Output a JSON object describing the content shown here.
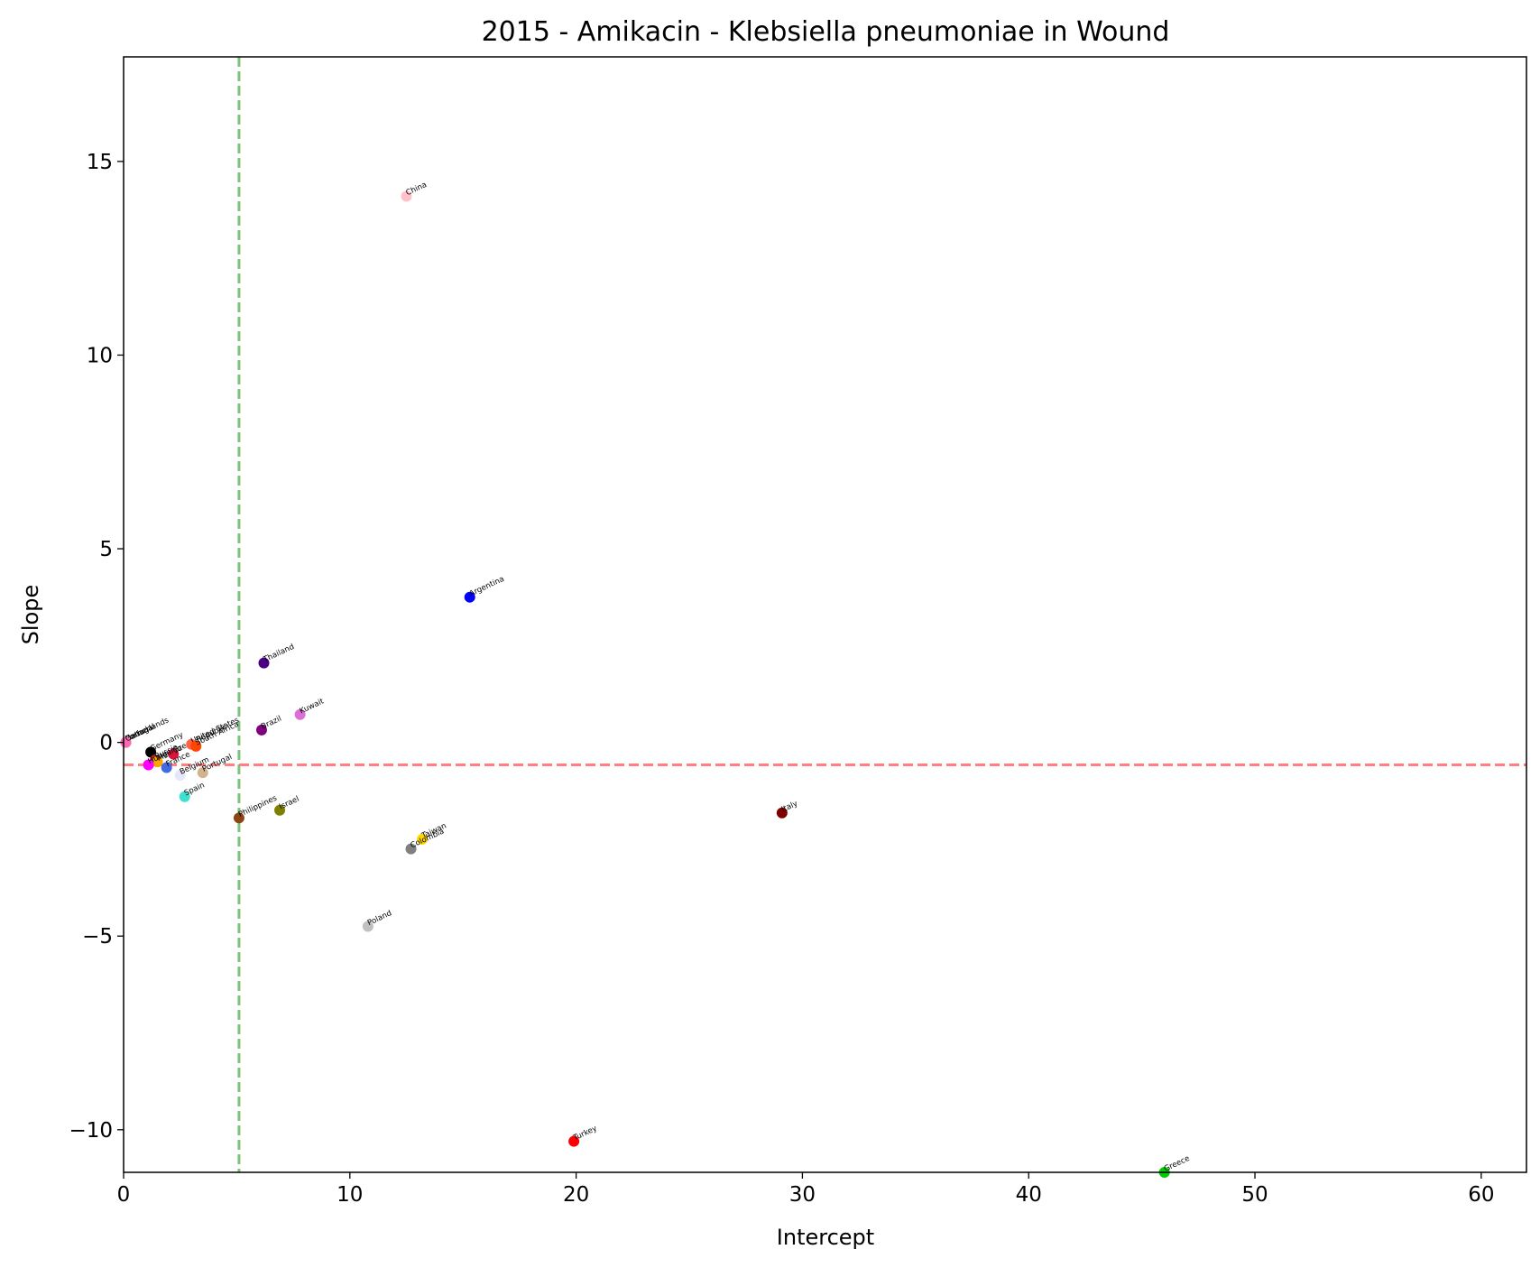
{
  "chart_data": {
    "type": "scatter",
    "title": "2015 - Amikacin - Klebsiella pneumoniae in Wound",
    "xlabel": "Intercept",
    "ylabel": "Slope",
    "xlim": [
      0,
      62
    ],
    "ylim": [
      -11.1,
      17.7
    ],
    "xticks": [
      0,
      10,
      20,
      30,
      40,
      50,
      60
    ],
    "yticks": [
      -10,
      -5,
      0,
      5,
      10,
      15
    ],
    "xtick_labels": [
      "0",
      "10",
      "20",
      "30",
      "40",
      "50",
      "60"
    ],
    "ytick_labels": [
      "−10",
      "−5",
      "0",
      "5",
      "10",
      "15"
    ],
    "grid": false,
    "reference_lines": [
      {
        "orientation": "vertical",
        "value": 5.1,
        "color": "#7cc47c",
        "style": "dashed"
      },
      {
        "orientation": "horizontal",
        "value": -0.58,
        "color": "#ff8080",
        "style": "dashed"
      }
    ],
    "points": [
      {
        "label": "China",
        "x": 12.5,
        "y": 14.1,
        "color": "#ffc0cb"
      },
      {
        "label": "Argentina",
        "x": 15.3,
        "y": 3.75,
        "color": "#0000ff"
      },
      {
        "label": "Thailand",
        "x": 6.2,
        "y": 2.05,
        "color": "#4b0082"
      },
      {
        "label": "Kuwait",
        "x": 7.8,
        "y": 0.72,
        "color": "#da70d6"
      },
      {
        "label": "Brazil",
        "x": 6.1,
        "y": 0.32,
        "color": "#800080"
      },
      {
        "label": "Netherlands",
        "x": 0.1,
        "y": 0.0,
        "color": "#d3d3d3"
      },
      {
        "label": "Portugal",
        "x": 0.1,
        "y": 0.0,
        "color": "#d2b48c"
      },
      {
        "label": "Canada",
        "x": 0.1,
        "y": 0.0,
        "color": "#ff69b4"
      },
      {
        "label": "Germany",
        "x": 1.2,
        "y": -0.25,
        "color": "#000000"
      },
      {
        "label": "Russia",
        "x": 1.4,
        "y": -0.45,
        "color": "#a52a2a"
      },
      {
        "label": "Mexico",
        "x": 1.5,
        "y": -0.5,
        "color": "#ffa500"
      },
      {
        "label": "Czech Republic",
        "x": 2.2,
        "y": -0.3,
        "color": "#dc143c"
      },
      {
        "label": "United States",
        "x": 3.0,
        "y": -0.05,
        "color": "#ff6347"
      },
      {
        "label": "South Africa",
        "x": 3.2,
        "y": -0.1,
        "color": "#ff4500"
      },
      {
        "label": "Hungary",
        "x": 1.1,
        "y": -0.58,
        "color": "#ff00ff"
      },
      {
        "label": "France",
        "x": 1.9,
        "y": -0.65,
        "color": "#4169e1"
      },
      {
        "label": "Belgium",
        "x": 2.5,
        "y": -0.85,
        "color": "#e6e6fa"
      },
      {
        "label": "Portugal",
        "x": 3.5,
        "y": -0.78,
        "color": "#d2b48c"
      },
      {
        "label": "Spain",
        "x": 2.7,
        "y": -1.4,
        "color": "#40e0d0"
      },
      {
        "label": "Philippines",
        "x": 5.1,
        "y": -1.95,
        "color": "#8b4513"
      },
      {
        "label": "Israel",
        "x": 6.9,
        "y": -1.75,
        "color": "#808000"
      },
      {
        "label": "Italy",
        "x": 29.1,
        "y": -1.82,
        "color": "#800000"
      },
      {
        "label": "Taiwan",
        "x": 13.2,
        "y": -2.5,
        "color": "#ffd700"
      },
      {
        "label": "Colombia",
        "x": 12.7,
        "y": -2.75,
        "color": "#808080"
      },
      {
        "label": "Poland",
        "x": 10.8,
        "y": -4.75,
        "color": "#c0c0c0"
      },
      {
        "label": "Turkey",
        "x": 19.9,
        "y": -10.3,
        "color": "#ff0000"
      },
      {
        "label": "Greece",
        "x": 46.0,
        "y": -11.1,
        "color": "#00cc00"
      }
    ]
  }
}
